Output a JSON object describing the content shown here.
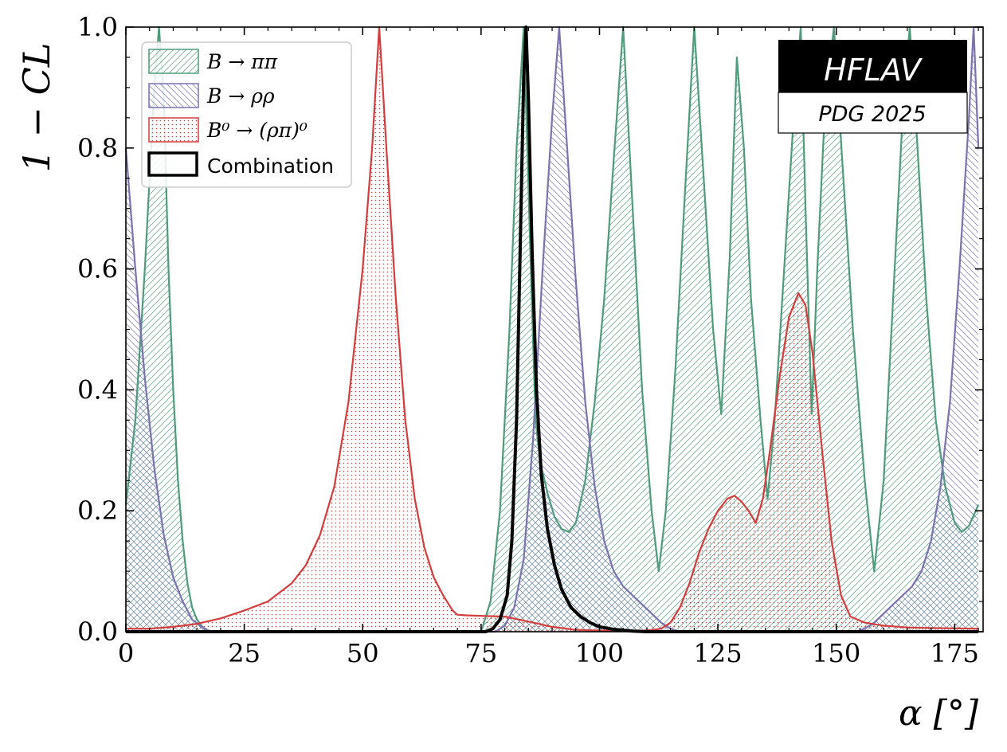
{
  "chart_data": {
    "type": "line",
    "xlabel": "α [°]",
    "ylabel": "1 − CL",
    "xlim": [
      0,
      181
    ],
    "ylim": [
      0,
      1
    ],
    "x_ticks": [
      0,
      25,
      50,
      75,
      100,
      125,
      150,
      175
    ],
    "y_ticks": [
      0.0,
      0.2,
      0.4,
      0.6,
      0.8,
      1.0
    ],
    "x_tick_labels": [
      "0",
      "25",
      "50",
      "75",
      "100",
      "125",
      "150",
      "175"
    ],
    "y_tick_labels": [
      "0.0",
      "0.2",
      "0.4",
      "0.6",
      "0.8",
      "1.0"
    ],
    "legend_position": "top-left",
    "badge": {
      "title": "HFLAV",
      "subtitle": "PDG 2025"
    },
    "series": [
      {
        "name": "B → ππ",
        "color": "#4e9c7c",
        "fill": "hatch-forward",
        "points": [
          [
            0,
            0.21
          ],
          [
            2,
            0.35
          ],
          [
            4,
            0.6
          ],
          [
            6,
            0.9
          ],
          [
            7,
            1.0
          ],
          [
            8,
            0.88
          ],
          [
            9,
            0.6
          ],
          [
            10,
            0.4
          ],
          [
            11,
            0.25
          ],
          [
            12,
            0.15
          ],
          [
            13,
            0.08
          ],
          [
            14,
            0.04
          ],
          [
            15,
            0.02
          ],
          [
            16,
            0.01
          ],
          [
            17,
            0
          ],
          [
            75,
            0
          ],
          [
            77,
            0.05
          ],
          [
            79,
            0.2
          ],
          [
            81,
            0.5
          ],
          [
            82.5,
            0.8
          ],
          [
            84,
            1.0
          ],
          [
            85.5,
            0.6
          ],
          [
            86.5,
            0.35
          ],
          [
            87.5,
            0.28
          ],
          [
            89,
            0.23
          ],
          [
            90.5,
            0.19
          ],
          [
            92,
            0.17
          ],
          [
            93.5,
            0.165
          ],
          [
            95,
            0.18
          ],
          [
            97,
            0.25
          ],
          [
            99,
            0.38
          ],
          [
            101,
            0.55
          ],
          [
            103,
            0.78
          ],
          [
            105,
            1.0
          ],
          [
            107,
            0.7
          ],
          [
            109,
            0.4
          ],
          [
            111,
            0.2
          ],
          [
            112.5,
            0.1
          ],
          [
            114,
            0.2
          ],
          [
            116,
            0.43
          ],
          [
            118,
            0.72
          ],
          [
            120,
            1.0
          ],
          [
            122,
            0.75
          ],
          [
            124,
            0.5
          ],
          [
            125.7,
            0.36
          ],
          [
            127.5,
            0.62
          ],
          [
            129,
            0.95
          ],
          [
            130.5,
            0.8
          ],
          [
            132,
            0.55
          ],
          [
            134,
            0.35
          ],
          [
            135.5,
            0.22
          ],
          [
            137,
            0.35
          ],
          [
            139,
            0.6
          ],
          [
            141,
            0.85
          ],
          [
            142.5,
            1.0
          ],
          [
            143.5,
            0.7
          ],
          [
            144.8,
            0.36
          ],
          [
            146,
            0.6
          ],
          [
            147.5,
            0.85
          ],
          [
            149.5,
            1.0
          ],
          [
            151.5,
            0.75
          ],
          [
            153.5,
            0.5
          ],
          [
            156,
            0.25
          ],
          [
            158,
            0.1
          ],
          [
            160,
            0.25
          ],
          [
            162,
            0.55
          ],
          [
            164,
            0.85
          ],
          [
            165.5,
            1.0
          ],
          [
            167,
            0.82
          ],
          [
            169,
            0.55
          ],
          [
            171,
            0.35
          ],
          [
            173,
            0.24
          ],
          [
            175,
            0.18
          ],
          [
            176.5,
            0.165
          ],
          [
            178,
            0.175
          ],
          [
            180,
            0.21
          ]
        ]
      },
      {
        "name": "B → ρρ",
        "color": "#7b72b0",
        "fill": "hatch-backward",
        "points": [
          [
            0,
            0.8
          ],
          [
            2,
            0.6
          ],
          [
            4,
            0.42
          ],
          [
            6,
            0.27
          ],
          [
            8,
            0.16
          ],
          [
            10,
            0.09
          ],
          [
            12,
            0.05
          ],
          [
            14,
            0.02
          ],
          [
            16,
            0.008
          ],
          [
            18,
            0
          ],
          [
            78,
            0
          ],
          [
            80,
            0.01
          ],
          [
            82,
            0.04
          ],
          [
            84,
            0.12
          ],
          [
            86,
            0.32
          ],
          [
            88,
            0.6
          ],
          [
            90,
            0.85
          ],
          [
            91.5,
            1.0
          ],
          [
            93,
            0.82
          ],
          [
            95,
            0.58
          ],
          [
            97,
            0.38
          ],
          [
            99,
            0.24
          ],
          [
            101,
            0.15
          ],
          [
            103,
            0.1
          ],
          [
            105,
            0.075
          ],
          [
            107,
            0.06
          ],
          [
            109,
            0.045
          ],
          [
            111,
            0.03
          ],
          [
            113,
            0.015
          ],
          [
            115,
            0.005
          ],
          [
            117,
            0
          ],
          [
            154,
            0
          ],
          [
            156,
            0.005
          ],
          [
            158,
            0.015
          ],
          [
            160,
            0.03
          ],
          [
            162,
            0.045
          ],
          [
            164,
            0.06
          ],
          [
            166,
            0.075
          ],
          [
            168,
            0.1
          ],
          [
            170,
            0.15
          ],
          [
            172,
            0.24
          ],
          [
            174,
            0.38
          ],
          [
            176,
            0.6
          ],
          [
            178,
            0.85
          ],
          [
            179,
            1.0
          ],
          [
            180,
            0.8
          ]
        ]
      },
      {
        "name": "B⁰ → (ρπ)⁰",
        "color": "#d43d3d",
        "fill": "dots",
        "points": [
          [
            0,
            0.005
          ],
          [
            5,
            0.005
          ],
          [
            10,
            0.008
          ],
          [
            15,
            0.013
          ],
          [
            20,
            0.022
          ],
          [
            25,
            0.035
          ],
          [
            30,
            0.05
          ],
          [
            35,
            0.08
          ],
          [
            38,
            0.11
          ],
          [
            41,
            0.16
          ],
          [
            44,
            0.24
          ],
          [
            47,
            0.38
          ],
          [
            50,
            0.6
          ],
          [
            52,
            0.8
          ],
          [
            53.5,
            1.0
          ],
          [
            55,
            0.8
          ],
          [
            57,
            0.55
          ],
          [
            59,
            0.35
          ],
          [
            61,
            0.22
          ],
          [
            63,
            0.14
          ],
          [
            65,
            0.09
          ],
          [
            67,
            0.06
          ],
          [
            69,
            0.035
          ],
          [
            70,
            0.028
          ],
          [
            72,
            0.027
          ],
          [
            76,
            0.026
          ],
          [
            80,
            0.025
          ],
          [
            83,
            0.02
          ],
          [
            86,
            0.015
          ],
          [
            90,
            0.008
          ],
          [
            95,
            0.003
          ],
          [
            100,
            0.002
          ],
          [
            105,
            0.001
          ],
          [
            110,
            0.002
          ],
          [
            113,
            0.005
          ],
          [
            115,
            0.015
          ],
          [
            117,
            0.04
          ],
          [
            119,
            0.08
          ],
          [
            121,
            0.13
          ],
          [
            123,
            0.17
          ],
          [
            125,
            0.2
          ],
          [
            127,
            0.22
          ],
          [
            128.5,
            0.225
          ],
          [
            130,
            0.215
          ],
          [
            131.5,
            0.2
          ],
          [
            133,
            0.18
          ],
          [
            134.5,
            0.22
          ],
          [
            136,
            0.3
          ],
          [
            138,
            0.42
          ],
          [
            140,
            0.52
          ],
          [
            142,
            0.56
          ],
          [
            143.5,
            0.54
          ],
          [
            145,
            0.46
          ],
          [
            147,
            0.3
          ],
          [
            149,
            0.15
          ],
          [
            151,
            0.06
          ],
          [
            153,
            0.025
          ],
          [
            156,
            0.015
          ],
          [
            160,
            0.01
          ],
          [
            165,
            0.007
          ],
          [
            170,
            0.006
          ],
          [
            180,
            0.005
          ]
        ]
      },
      {
        "name": "Combination",
        "color": "#000000",
        "fill": "none",
        "points": [
          [
            0,
            0
          ],
          [
            76,
            0
          ],
          [
            77.5,
            0.005
          ],
          [
            79,
            0.02
          ],
          [
            80.5,
            0.06
          ],
          [
            81.5,
            0.15
          ],
          [
            82.5,
            0.35
          ],
          [
            83.3,
            0.65
          ],
          [
            84,
            0.92
          ],
          [
            84.5,
            1.0
          ],
          [
            85,
            0.88
          ],
          [
            85.8,
            0.62
          ],
          [
            86.7,
            0.4
          ],
          [
            87.7,
            0.26
          ],
          [
            89,
            0.17
          ],
          [
            90.5,
            0.11
          ],
          [
            92,
            0.07
          ],
          [
            94,
            0.04
          ],
          [
            96,
            0.025
          ],
          [
            98,
            0.015
          ],
          [
            100,
            0.008
          ],
          [
            103,
            0.004
          ],
          [
            107,
            0.001
          ],
          [
            110,
            0
          ],
          [
            180,
            0
          ]
        ]
      }
    ]
  }
}
